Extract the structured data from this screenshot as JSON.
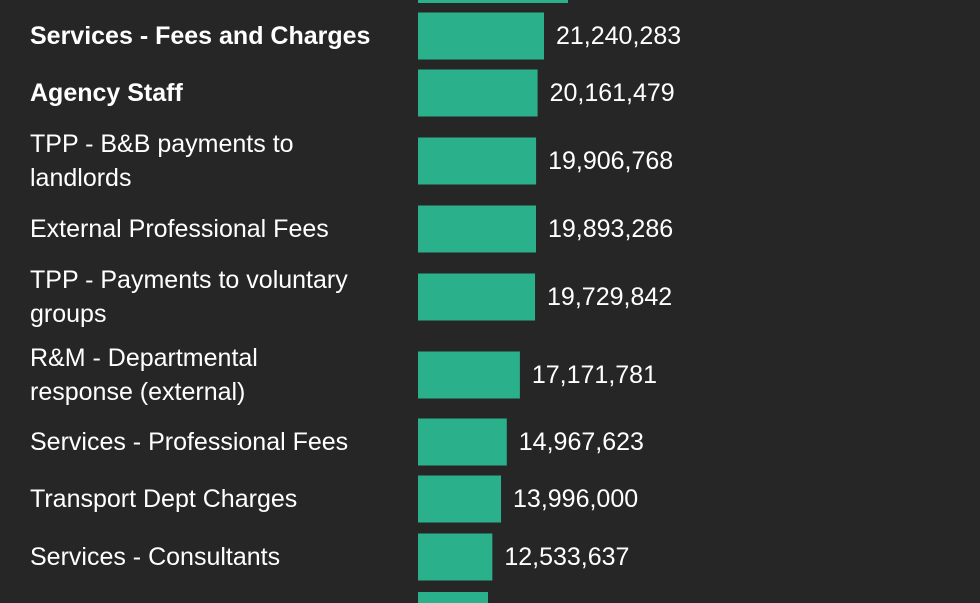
{
  "chart_data": {
    "type": "bar",
    "orientation": "horizontal",
    "title": "",
    "xlabel": "",
    "ylabel": "",
    "bar_color": "#2bb08c",
    "background_color": "#262626",
    "xlim": [
      0,
      58000000
    ],
    "categories": [
      {
        "lines": [
          "Services - Fees and Charges"
        ],
        "bold": true
      },
      {
        "lines": [
          "Agency Staff"
        ],
        "bold": true
      },
      {
        "lines": [
          "TPP - B&B payments to",
          "landlords"
        ],
        "bold": false
      },
      {
        "lines": [
          "External Professional Fees"
        ],
        "bold": false
      },
      {
        "lines": [
          "TPP - Payments to voluntary",
          "groups"
        ],
        "bold": false
      },
      {
        "lines": [
          "R&M - Departmental",
          "response (external)"
        ],
        "bold": false
      },
      {
        "lines": [
          "Services - Professional Fees"
        ],
        "bold": false
      },
      {
        "lines": [
          "Transport Dept Charges"
        ],
        "bold": false
      },
      {
        "lines": [
          "Services - Consultants"
        ],
        "bold": false
      }
    ],
    "values": [
      21240283,
      20161479,
      19906768,
      19893286,
      19729842,
      17171781,
      14967623,
      13996000,
      12533637
    ],
    "value_labels": [
      "21,240,283",
      "20,161,479",
      "19,906,768",
      "19,893,286",
      "19,729,842",
      "17,171,781",
      "14,967,623",
      "13,996,000",
      "12,533,637"
    ]
  }
}
